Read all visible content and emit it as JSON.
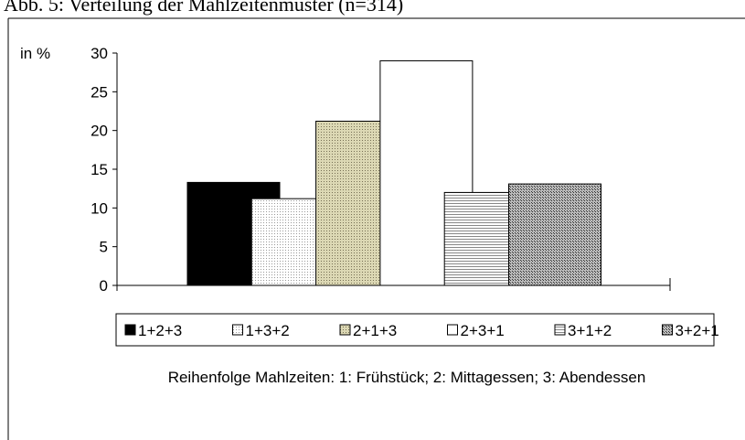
{
  "chart_data": {
    "type": "bar",
    "title": "Abb. 5: Verteilung der Mahlzeitenmuster (n=314)",
    "ylabel": "in %",
    "xlabel": "Reihenfolge Mahlzeiten: 1: Frühstück; 2: Mittagessen; 3: Abendessen",
    "categories": [
      null
    ],
    "series": [
      {
        "name": "1+2+3",
        "color": "#000000",
        "values": [
          13.3
        ]
      },
      {
        "name": "1+3+2",
        "color": "#f0f0f0",
        "values": [
          11.2
        ]
      },
      {
        "name": "2+1+3",
        "color": "#c9c59c",
        "values": [
          21.2
        ]
      },
      {
        "name": "2+3+1",
        "color": "#ffffff",
        "values": [
          29
        ]
      },
      {
        "name": "3+1+2",
        "color": "#e4e4e4",
        "values": [
          12
        ]
      },
      {
        "name": "3+2+1",
        "color": "#9a9a9a",
        "values": [
          13.1
        ]
      }
    ],
    "ylim": [
      0,
      30
    ],
    "yticks": [
      0,
      5,
      10,
      15,
      20,
      25,
      30
    ],
    "legend": "bottom"
  }
}
